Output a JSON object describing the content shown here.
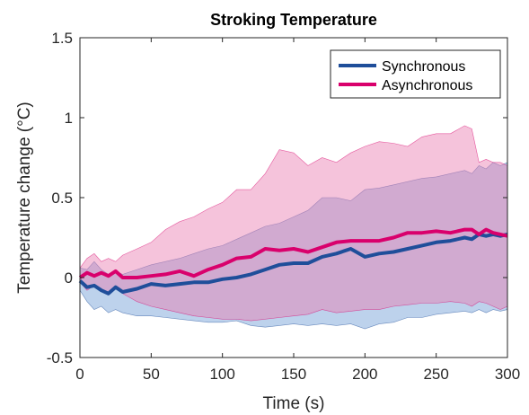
{
  "chart_data": {
    "type": "line",
    "title": "Stroking Temperature",
    "xlabel": "Time (s)",
    "ylabel": "Temperature change (°C)",
    "xlim": [
      0,
      300
    ],
    "ylim": [
      -0.5,
      1.5
    ],
    "xticks": [
      0,
      50,
      100,
      150,
      200,
      250,
      300
    ],
    "xtick_labels": [
      "0",
      "50",
      "100",
      "150",
      "200",
      "250",
      "300"
    ],
    "yticks": [
      -0.5,
      0,
      0.5,
      1,
      1.5
    ],
    "ytick_labels": [
      "-0.5",
      "0",
      "0.5",
      "1",
      "1.5"
    ],
    "grid": false,
    "legend_position": "top-right",
    "series": [
      {
        "name": "Synchronous",
        "color": "#1f4e9a",
        "band_color": "#5b8fd0",
        "band_opacity": 0.4,
        "x": [
          0,
          5,
          10,
          15,
          20,
          25,
          30,
          40,
          50,
          60,
          70,
          80,
          90,
          100,
          110,
          120,
          130,
          140,
          150,
          160,
          170,
          180,
          190,
          200,
          210,
          220,
          230,
          240,
          250,
          260,
          270,
          275,
          280,
          285,
          290,
          295,
          300
        ],
        "mean": [
          -0.02,
          -0.06,
          -0.05,
          -0.08,
          -0.1,
          -0.06,
          -0.09,
          -0.07,
          -0.04,
          -0.05,
          -0.04,
          -0.03,
          -0.03,
          -0.01,
          0.0,
          0.02,
          0.05,
          0.08,
          0.09,
          0.09,
          0.13,
          0.15,
          0.18,
          0.13,
          0.15,
          0.16,
          0.18,
          0.2,
          0.22,
          0.23,
          0.25,
          0.24,
          0.27,
          0.26,
          0.27,
          0.26,
          0.27
        ],
        "upper": [
          0.06,
          0.05,
          0.1,
          0.05,
          0.02,
          0.04,
          0.02,
          0.05,
          0.08,
          0.1,
          0.12,
          0.15,
          0.18,
          0.2,
          0.24,
          0.28,
          0.32,
          0.34,
          0.38,
          0.42,
          0.5,
          0.5,
          0.48,
          0.55,
          0.56,
          0.58,
          0.6,
          0.62,
          0.63,
          0.65,
          0.67,
          0.65,
          0.7,
          0.68,
          0.72,
          0.7,
          0.72
        ],
        "lower": [
          -0.08,
          -0.15,
          -0.2,
          -0.18,
          -0.22,
          -0.2,
          -0.22,
          -0.24,
          -0.24,
          -0.25,
          -0.26,
          -0.27,
          -0.28,
          -0.28,
          -0.27,
          -0.3,
          -0.31,
          -0.3,
          -0.29,
          -0.3,
          -0.29,
          -0.3,
          -0.29,
          -0.32,
          -0.29,
          -0.28,
          -0.25,
          -0.25,
          -0.23,
          -0.22,
          -0.21,
          -0.22,
          -0.2,
          -0.22,
          -0.2,
          -0.21,
          -0.2
        ]
      },
      {
        "name": "Asynchronous",
        "color": "#d9006c",
        "band_color": "#e87aaf",
        "band_opacity": 0.45,
        "x": [
          0,
          5,
          10,
          15,
          20,
          25,
          30,
          40,
          50,
          60,
          70,
          80,
          90,
          100,
          110,
          120,
          130,
          140,
          150,
          160,
          170,
          180,
          190,
          200,
          210,
          220,
          230,
          240,
          250,
          260,
          270,
          275,
          280,
          285,
          290,
          295,
          300
        ],
        "mean": [
          0.0,
          0.03,
          0.01,
          0.03,
          0.01,
          0.04,
          0.0,
          0.0,
          0.01,
          0.02,
          0.04,
          0.01,
          0.05,
          0.08,
          0.12,
          0.13,
          0.18,
          0.17,
          0.18,
          0.16,
          0.19,
          0.22,
          0.23,
          0.23,
          0.23,
          0.25,
          0.28,
          0.28,
          0.29,
          0.28,
          0.3,
          0.3,
          0.27,
          0.3,
          0.28,
          0.27,
          0.26
        ],
        "upper": [
          0.06,
          0.12,
          0.15,
          0.1,
          0.12,
          0.1,
          0.14,
          0.18,
          0.22,
          0.3,
          0.35,
          0.38,
          0.43,
          0.47,
          0.55,
          0.55,
          0.65,
          0.8,
          0.78,
          0.7,
          0.75,
          0.72,
          0.78,
          0.82,
          0.85,
          0.84,
          0.82,
          0.88,
          0.9,
          0.9,
          0.95,
          0.93,
          0.72,
          0.74,
          0.72,
          0.72,
          0.7
        ],
        "lower": [
          -0.03,
          -0.08,
          -0.05,
          -0.07,
          -0.1,
          -0.06,
          -0.1,
          -0.15,
          -0.18,
          -0.2,
          -0.22,
          -0.24,
          -0.25,
          -0.26,
          -0.26,
          -0.27,
          -0.26,
          -0.25,
          -0.24,
          -0.23,
          -0.2,
          -0.22,
          -0.21,
          -0.2,
          -0.2,
          -0.18,
          -0.17,
          -0.16,
          -0.16,
          -0.15,
          -0.16,
          -0.18,
          -0.15,
          -0.16,
          -0.18,
          -0.2,
          -0.18
        ]
      }
    ]
  }
}
